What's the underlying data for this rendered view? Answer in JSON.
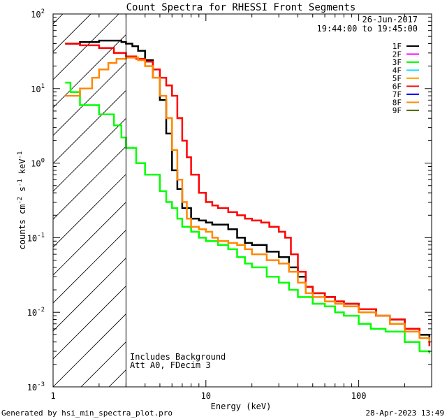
{
  "chart_data": {
    "type": "line",
    "title": "Count Spectra for RHESSI Front Segments",
    "xlabel": "Energy (keV)",
    "ylabel_parts": [
      "counts cm",
      "-2",
      " s",
      "-1",
      " keV",
      "-1"
    ],
    "xscale": "log",
    "yscale": "log",
    "xlim": [
      1,
      300
    ],
    "ylim": [
      0.001,
      100
    ],
    "x_ticks": [
      {
        "value": 1,
        "label": "1"
      },
      {
        "value": 10,
        "label": "10"
      },
      {
        "value": 100,
        "label": "100"
      }
    ],
    "y_ticks": [
      {
        "value": 0.001,
        "label_base": "10",
        "label_exp": "-3"
      },
      {
        "value": 0.01,
        "label_base": "10",
        "label_exp": "-2"
      },
      {
        "value": 0.1,
        "label_base": "10",
        "label_exp": "-1"
      },
      {
        "value": 1,
        "label_base": "10",
        "label_exp": "0"
      },
      {
        "value": 10,
        "label_base": "10",
        "label_exp": "1"
      },
      {
        "value": 100,
        "label_base": "10",
        "label_exp": "2"
      }
    ],
    "date": "26-Jun-2017",
    "time_range": "19:44:00 to 19:45:00",
    "annotations": [
      "Includes Background",
      "Att A0, FDecim 3"
    ],
    "shaded_region": {
      "x_from": 1,
      "x_to": 3,
      "style": "diagonal hatch"
    },
    "series": [
      {
        "name": "1F",
        "color": "#000000",
        "points": [
          [
            1.2,
            40
          ],
          [
            1.5,
            42
          ],
          [
            2,
            44
          ],
          [
            2.5,
            44
          ],
          [
            2.8,
            42
          ],
          [
            3,
            40
          ],
          [
            3.3,
            37
          ],
          [
            3.6,
            32
          ],
          [
            4,
            24
          ],
          [
            4.5,
            14
          ],
          [
            5,
            7
          ],
          [
            5.5,
            2.5
          ],
          [
            6,
            0.8
          ],
          [
            6.5,
            0.45
          ],
          [
            7,
            0.25
          ],
          [
            8,
            0.18
          ],
          [
            9,
            0.17
          ],
          [
            10,
            0.16
          ],
          [
            11,
            0.15
          ],
          [
            12,
            0.15
          ],
          [
            14,
            0.13
          ],
          [
            16,
            0.1
          ],
          [
            18,
            0.085
          ],
          [
            20,
            0.08
          ],
          [
            25,
            0.065
          ],
          [
            30,
            0.055
          ],
          [
            35,
            0.04
          ],
          [
            40,
            0.03
          ],
          [
            45,
            0.022
          ],
          [
            50,
            0.018
          ],
          [
            60,
            0.016
          ],
          [
            70,
            0.014
          ],
          [
            80,
            0.013
          ],
          [
            100,
            0.011
          ],
          [
            130,
            0.009
          ],
          [
            160,
            0.008
          ],
          [
            200,
            0.006
          ],
          [
            250,
            0.005
          ],
          [
            290,
            0.004
          ]
        ]
      },
      {
        "name": "2F",
        "color": "#ff00ff",
        "points": []
      },
      {
        "name": "3F",
        "color": "#00ff00",
        "points": [
          [
            1.2,
            12
          ],
          [
            1.3,
            9
          ],
          [
            1.5,
            6
          ],
          [
            2,
            4.5
          ],
          [
            2.5,
            3.2
          ],
          [
            2.8,
            2.2
          ],
          [
            3,
            1.6
          ],
          [
            3.5,
            1.0
          ],
          [
            4,
            0.7
          ],
          [
            5,
            0.42
          ],
          [
            5.5,
            0.3
          ],
          [
            6,
            0.25
          ],
          [
            6.5,
            0.18
          ],
          [
            7,
            0.14
          ],
          [
            8,
            0.12
          ],
          [
            9,
            0.1
          ],
          [
            10,
            0.09
          ],
          [
            12,
            0.08
          ],
          [
            14,
            0.07
          ],
          [
            16,
            0.055
          ],
          [
            18,
            0.045
          ],
          [
            20,
            0.04
          ],
          [
            25,
            0.03
          ],
          [
            30,
            0.025
          ],
          [
            35,
            0.02
          ],
          [
            40,
            0.016
          ],
          [
            50,
            0.013
          ],
          [
            60,
            0.012
          ],
          [
            70,
            0.01
          ],
          [
            80,
            0.009
          ],
          [
            100,
            0.007
          ],
          [
            120,
            0.006
          ],
          [
            150,
            0.0055
          ],
          [
            200,
            0.004
          ],
          [
            250,
            0.003
          ],
          [
            290,
            0.0028
          ]
        ]
      },
      {
        "name": "4F",
        "color": "#00e0ff",
        "points": []
      },
      {
        "name": "5F",
        "color": "#ffaa00",
        "points": []
      },
      {
        "name": "6F",
        "color": "#ff0000",
        "points": [
          [
            1.2,
            40
          ],
          [
            1.5,
            38
          ],
          [
            2,
            35
          ],
          [
            2.5,
            30
          ],
          [
            3,
            27
          ],
          [
            3.5,
            25
          ],
          [
            4,
            23
          ],
          [
            4.5,
            18
          ],
          [
            5,
            14
          ],
          [
            5.5,
            11
          ],
          [
            6,
            8
          ],
          [
            6.5,
            4
          ],
          [
            7,
            2
          ],
          [
            7.5,
            1.2
          ],
          [
            8,
            0.7
          ],
          [
            9,
            0.4
          ],
          [
            10,
            0.3
          ],
          [
            11,
            0.27
          ],
          [
            12,
            0.25
          ],
          [
            14,
            0.22
          ],
          [
            16,
            0.2
          ],
          [
            18,
            0.18
          ],
          [
            20,
            0.17
          ],
          [
            23,
            0.16
          ],
          [
            26,
            0.14
          ],
          [
            30,
            0.12
          ],
          [
            33,
            0.1
          ],
          [
            36,
            0.06
          ],
          [
            40,
            0.035
          ],
          [
            45,
            0.022
          ],
          [
            50,
            0.018
          ],
          [
            60,
            0.016
          ],
          [
            70,
            0.014
          ],
          [
            80,
            0.013
          ],
          [
            100,
            0.011
          ],
          [
            130,
            0.009
          ],
          [
            160,
            0.008
          ],
          [
            200,
            0.006
          ],
          [
            250,
            0.0045
          ],
          [
            290,
            0.0035
          ]
        ]
      },
      {
        "name": "7F",
        "color": "#0000ff",
        "points": []
      },
      {
        "name": "8F",
        "color": "#ff8800",
        "points": [
          [
            1.2,
            8
          ],
          [
            1.5,
            10
          ],
          [
            1.8,
            14
          ],
          [
            2,
            18
          ],
          [
            2.3,
            22
          ],
          [
            2.6,
            25
          ],
          [
            3,
            26
          ],
          [
            3.3,
            26
          ],
          [
            3.6,
            24
          ],
          [
            4,
            20
          ],
          [
            4.5,
            14
          ],
          [
            5,
            8
          ],
          [
            5.5,
            4
          ],
          [
            6,
            1.5
          ],
          [
            6.5,
            0.6
          ],
          [
            7,
            0.3
          ],
          [
            7.5,
            0.18
          ],
          [
            8,
            0.14
          ],
          [
            9,
            0.13
          ],
          [
            10,
            0.12
          ],
          [
            11,
            0.1
          ],
          [
            12,
            0.09
          ],
          [
            14,
            0.085
          ],
          [
            16,
            0.08
          ],
          [
            18,
            0.07
          ],
          [
            20,
            0.06
          ],
          [
            25,
            0.05
          ],
          [
            30,
            0.045
          ],
          [
            35,
            0.035
          ],
          [
            40,
            0.025
          ],
          [
            45,
            0.018
          ],
          [
            50,
            0.016
          ],
          [
            60,
            0.014
          ],
          [
            70,
            0.013
          ],
          [
            80,
            0.012
          ],
          [
            100,
            0.01
          ],
          [
            130,
            0.009
          ],
          [
            160,
            0.007
          ],
          [
            200,
            0.0055
          ],
          [
            250,
            0.0045
          ],
          [
            290,
            0.004
          ]
        ]
      },
      {
        "name": "9F",
        "color": "#556b00",
        "points": []
      }
    ]
  },
  "footer": {
    "generated_by": "Generated by hsi_min_spectra_plot.pro",
    "timestamp": "28-Apr-2023 13:49"
  }
}
